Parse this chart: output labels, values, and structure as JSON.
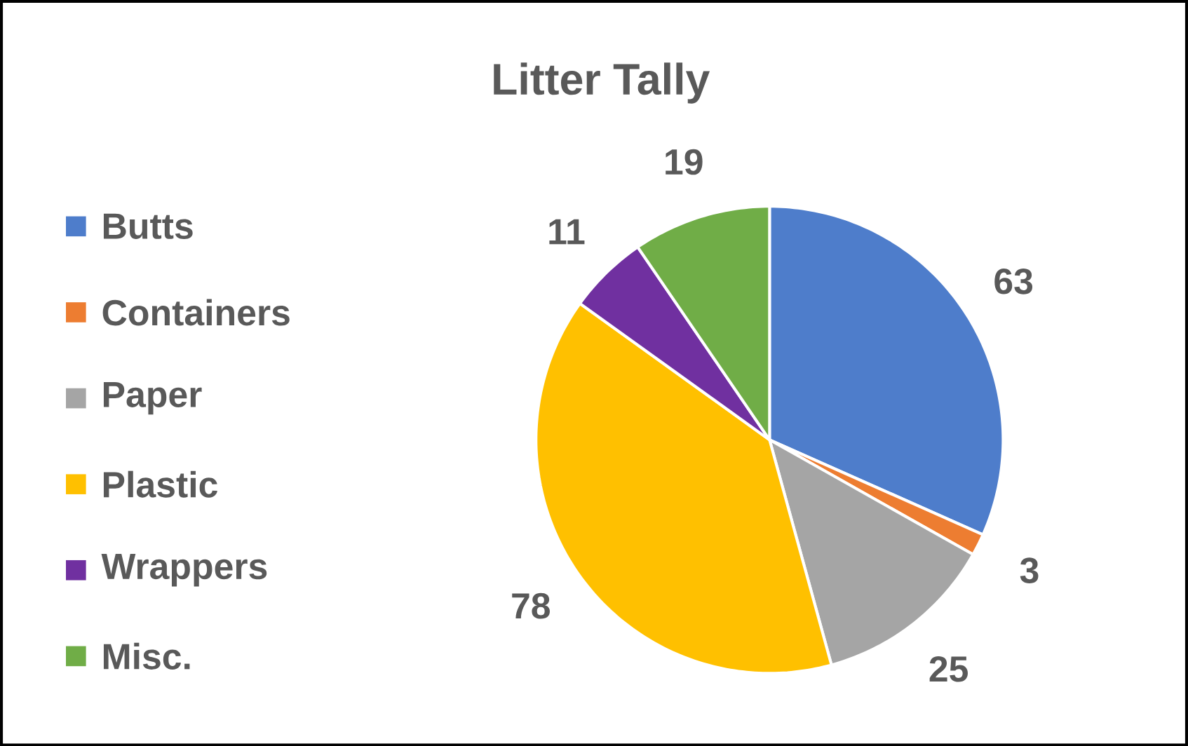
{
  "chart_data": {
    "type": "pie",
    "title": "Litter Tally",
    "categories": [
      "Butts",
      "Containers",
      "Paper",
      "Plastic",
      "Wrappers",
      "Misc."
    ],
    "values": [
      63,
      3,
      25,
      78,
      11,
      19
    ],
    "colors": [
      "#4e7dcb",
      "#ed7d31",
      "#a5a5a5",
      "#ffc000",
      "#7030a0",
      "#70ad47"
    ],
    "legend": "left",
    "data_labels": true
  }
}
